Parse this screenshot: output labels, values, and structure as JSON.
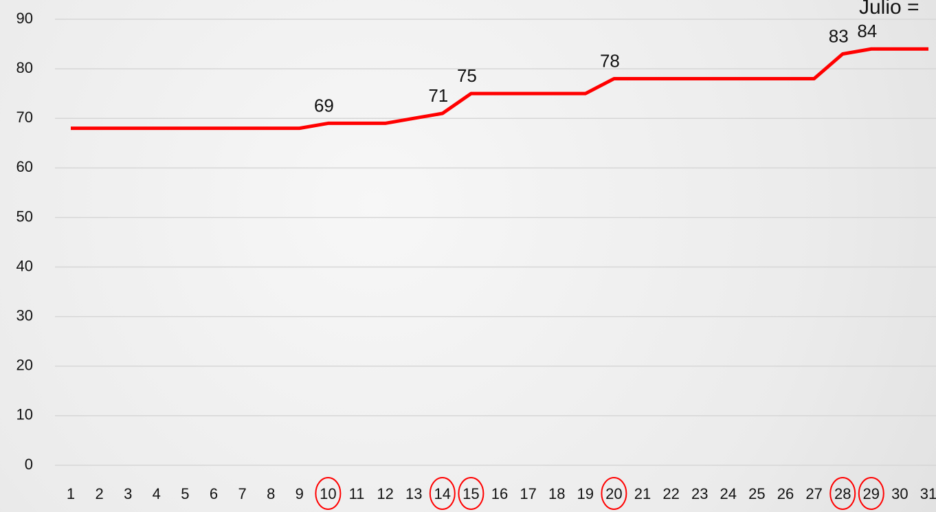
{
  "chart_data": {
    "type": "line",
    "annotation": "Julio =",
    "categories": [
      "1",
      "2",
      "3",
      "4",
      "5",
      "6",
      "7",
      "8",
      "9",
      "10",
      "11",
      "12",
      "13",
      "14",
      "15",
      "16",
      "17",
      "18",
      "19",
      "20",
      "21",
      "22",
      "23",
      "24",
      "25",
      "26",
      "27",
      "28",
      "29",
      "30",
      "31"
    ],
    "series": [
      {
        "color": "#ff0000",
        "values": [
          68,
          68,
          68,
          68,
          68,
          68,
          68,
          68,
          68,
          69,
          69,
          69,
          70,
          71,
          75,
          75,
          75,
          75,
          75,
          78,
          78,
          78,
          78,
          78,
          78,
          78,
          78,
          83,
          84,
          84,
          84
        ]
      }
    ],
    "highlight": [
      "10",
      "14",
      "15",
      "20",
      "28",
      "29"
    ],
    "ylim": [
      0,
      90
    ],
    "yticks": [
      0,
      10,
      20,
      30,
      40,
      50,
      60,
      70,
      80,
      90
    ],
    "grid": true
  }
}
